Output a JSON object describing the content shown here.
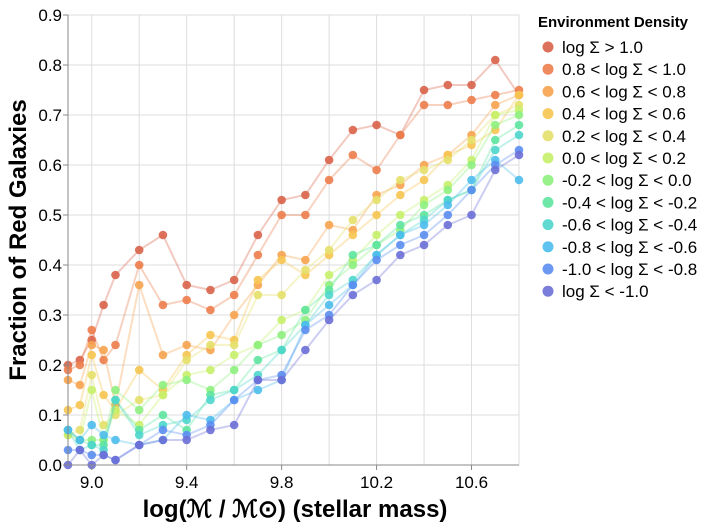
{
  "chart_data": {
    "type": "line",
    "xlabel": "log(ℳ / ℳ⊙) (stellar mass)",
    "ylabel": "Fraction of Red Galaxies",
    "xlim": [
      8.9,
      10.8
    ],
    "ylim": [
      0,
      0.9
    ],
    "x_ticks": [
      9.0,
      9.4,
      9.8,
      10.2,
      10.6
    ],
    "x_tick_labels": [
      "9.0",
      "9.4",
      "9.8",
      "10.2",
      "10.6"
    ],
    "y_ticks": [
      0,
      0.1,
      0.2,
      0.3,
      0.4,
      0.5,
      0.6,
      0.7,
      0.8,
      0.9
    ],
    "y_tick_labels": [
      "0.0",
      "0.1",
      "0.2",
      "0.3",
      "0.4",
      "0.5",
      "0.6",
      "0.7",
      "0.8",
      "0.9"
    ],
    "grid": true,
    "legend_title": "Environment Density",
    "legend_position": "right",
    "x": [
      8.9,
      8.95,
      9.0,
      9.05,
      9.1,
      9.2,
      9.3,
      9.4,
      9.5,
      9.6,
      9.7,
      9.8,
      9.9,
      10.0,
      10.1,
      10.2,
      10.3,
      10.4,
      10.5,
      10.6,
      10.7,
      10.8
    ],
    "series": [
      {
        "name": "log Σ > 1.0",
        "color": "#d9634a",
        "values": [
          0.2,
          0.21,
          0.25,
          0.32,
          0.38,
          0.43,
          0.46,
          0.36,
          0.35,
          0.37,
          0.46,
          0.53,
          0.54,
          0.61,
          0.67,
          0.68,
          0.66,
          0.75,
          0.76,
          0.76,
          0.81,
          0.74
        ]
      },
      {
        "name": "0.8 < log Σ < 1.0",
        "color": "#ec7d4c",
        "values": [
          0.19,
          0.2,
          0.27,
          0.21,
          0.24,
          0.4,
          0.32,
          0.33,
          0.31,
          0.34,
          0.42,
          0.5,
          0.5,
          0.57,
          0.62,
          0.59,
          0.66,
          0.72,
          0.72,
          0.73,
          0.74,
          0.75
        ]
      },
      {
        "name": "0.6 < log Σ < 0.8",
        "color": "#f6a34f",
        "values": [
          0.17,
          0.16,
          0.24,
          0.23,
          0.12,
          0.36,
          0.22,
          0.24,
          0.23,
          0.3,
          0.36,
          0.42,
          0.41,
          0.48,
          0.47,
          0.54,
          0.56,
          0.6,
          0.62,
          0.66,
          0.72,
          0.74
        ]
      },
      {
        "name": "0.4 < log Σ < 0.6",
        "color": "#f6c551",
        "values": [
          0.11,
          0.12,
          0.22,
          0.14,
          0.11,
          0.19,
          0.15,
          0.22,
          0.26,
          0.25,
          0.37,
          0.41,
          0.38,
          0.42,
          0.46,
          0.5,
          0.54,
          0.57,
          0.62,
          0.64,
          0.67,
          0.74
        ]
      },
      {
        "name": "0.2 < log Σ < 0.4",
        "color": "#e6e06a",
        "values": [
          0.06,
          0.07,
          0.18,
          0.08,
          0.1,
          0.13,
          0.14,
          0.21,
          0.24,
          0.24,
          0.34,
          0.34,
          0.39,
          0.43,
          0.49,
          0.53,
          0.57,
          0.59,
          0.61,
          0.65,
          0.7,
          0.72
        ]
      },
      {
        "name": "0.0 < log Σ < 0.2",
        "color": "#c6f06a",
        "values": [
          0.06,
          0.05,
          0.15,
          0.05,
          0.11,
          0.08,
          0.14,
          0.18,
          0.19,
          0.22,
          0.24,
          0.29,
          0.31,
          0.38,
          0.41,
          0.46,
          0.5,
          0.53,
          0.56,
          0.61,
          0.7,
          0.71
        ]
      },
      {
        "name": "-0.2 < log Σ < 0.0",
        "color": "#8ef07e",
        "values": [
          0.07,
          0.05,
          0.05,
          0.05,
          0.15,
          0.11,
          0.16,
          0.17,
          0.15,
          0.19,
          0.24,
          0.26,
          0.29,
          0.36,
          0.4,
          0.44,
          0.47,
          0.52,
          0.55,
          0.6,
          0.68,
          0.7
        ]
      },
      {
        "name": "-0.4 < log Σ < -0.2",
        "color": "#5ee4a0",
        "values": [
          0.07,
          0.05,
          0.04,
          0.04,
          0.13,
          0.07,
          0.1,
          0.07,
          0.14,
          0.15,
          0.21,
          0.23,
          0.31,
          0.35,
          0.42,
          0.44,
          0.48,
          0.5,
          0.53,
          0.55,
          0.65,
          0.68
        ]
      },
      {
        "name": "-0.6 < log Σ < -0.4",
        "color": "#4fd6cc",
        "values": [
          0.07,
          0.03,
          0.04,
          0.03,
          0.13,
          0.06,
          0.08,
          0.09,
          0.13,
          0.15,
          0.18,
          0.23,
          0.28,
          0.34,
          0.37,
          0.42,
          0.46,
          0.49,
          0.53,
          0.55,
          0.63,
          0.66
        ]
      },
      {
        "name": "-0.8 < log Σ < -0.6",
        "color": "#4cbcec",
        "values": [
          0.07,
          0.05,
          0.08,
          0.06,
          0.05,
          0.04,
          0.05,
          0.1,
          0.09,
          0.13,
          0.15,
          0.17,
          0.28,
          0.32,
          0.36,
          0.42,
          0.46,
          0.48,
          0.52,
          0.57,
          0.61,
          0.57
        ]
      },
      {
        "name": "-1.0 < log Σ < -0.8",
        "color": "#5b8ef0",
        "values": [
          0.03,
          0.03,
          0.02,
          0.02,
          0.01,
          0.04,
          0.07,
          0.06,
          0.08,
          0.13,
          0.17,
          0.18,
          0.27,
          0.3,
          0.36,
          0.41,
          0.44,
          0.46,
          0.5,
          0.55,
          0.6,
          0.63
        ]
      },
      {
        "name": "log Σ < -1.0",
        "color": "#6c6fd6",
        "values": [
          0.0,
          0.03,
          0.0,
          0.02,
          0.01,
          0.04,
          0.05,
          0.05,
          0.07,
          0.08,
          0.17,
          0.17,
          0.23,
          0.29,
          0.34,
          0.37,
          0.42,
          0.44,
          0.48,
          0.5,
          0.59,
          0.62
        ]
      }
    ]
  }
}
